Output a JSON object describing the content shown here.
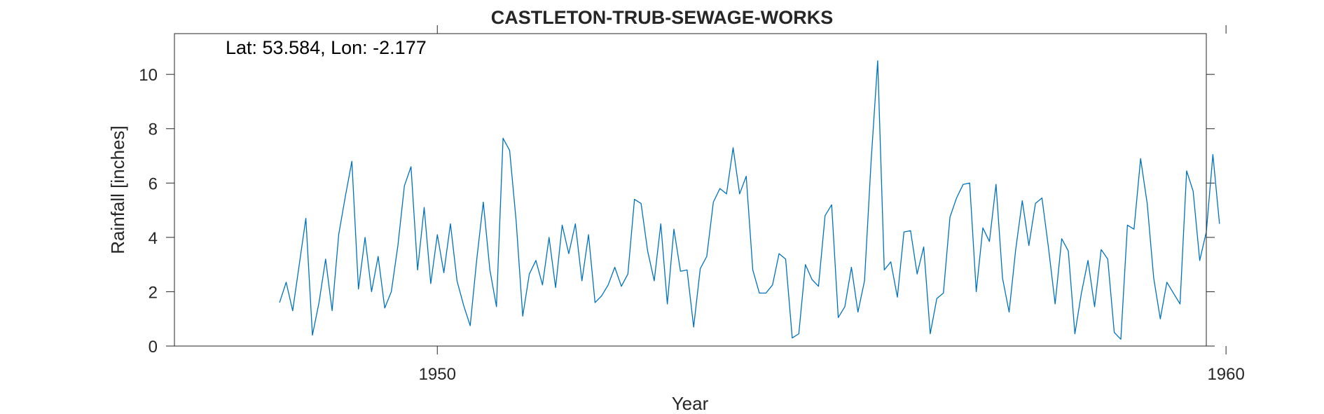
{
  "chart_data": {
    "type": "line",
    "title": "CASTLETON-TRUB-SEWAGE-WORKS",
    "annotation": "Lat: 53.584, Lon: -2.177",
    "xlabel": "Year",
    "ylabel": "Rainfall [inches]",
    "xlim": [
      1946.667,
      1959.75
    ],
    "ylim": [
      0,
      11.5
    ],
    "xticks": [
      1950,
      1960
    ],
    "yticks": [
      0,
      2,
      4,
      6,
      8,
      10
    ],
    "grid": false,
    "line_color": "#0072BD",
    "series": [
      {
        "start": "1948-01",
        "step": "month",
        "values": [
          1.6,
          2.35,
          1.3,
          3.0,
          4.7,
          0.4,
          1.6,
          3.2,
          1.3,
          4.1,
          5.5,
          6.8,
          2.1,
          4.0,
          2.0,
          3.3,
          1.4,
          2.0,
          3.7,
          5.9,
          6.6,
          2.8,
          5.1,
          2.3,
          4.1,
          2.7,
          4.5,
          2.4,
          1.5,
          0.75,
          3.2,
          5.3,
          2.8,
          1.45,
          7.65,
          7.2,
          4.6,
          1.1,
          2.65,
          3.15,
          2.25,
          4.0,
          2.15,
          4.45,
          3.4,
          4.5,
          2.4,
          4.1,
          1.6,
          1.85,
          2.25,
          2.9,
          2.2,
          2.65,
          5.4,
          5.25,
          3.5,
          2.4,
          4.5,
          1.55,
          4.3,
          2.75,
          2.8,
          0.7,
          2.85,
          3.3,
          5.3,
          5.8,
          5.6,
          7.3,
          5.6,
          6.25,
          2.8,
          1.95,
          1.95,
          2.25,
          3.4,
          3.2,
          0.3,
          0.45,
          3.0,
          2.45,
          2.2,
          4.8,
          5.2,
          1.05,
          1.45,
          2.9,
          1.25,
          2.4,
          6.8,
          10.5,
          2.8,
          3.1,
          1.8,
          4.2,
          4.25,
          2.65,
          3.65,
          0.45,
          1.75,
          1.95,
          4.75,
          5.45,
          5.95,
          6.0,
          2.0,
          4.35,
          3.85,
          5.95,
          2.5,
          1.25,
          3.55,
          5.35,
          3.7,
          5.25,
          5.45,
          3.6,
          1.55,
          3.95,
          3.5,
          0.45,
          1.95,
          3.15,
          1.45,
          3.55,
          3.2,
          0.5,
          0.25,
          4.45,
          4.3,
          6.9,
          5.25,
          2.5,
          1.0,
          2.35,
          1.95,
          1.55,
          6.45,
          5.7,
          3.15,
          4.2,
          7.05,
          4.5
        ]
      }
    ]
  }
}
